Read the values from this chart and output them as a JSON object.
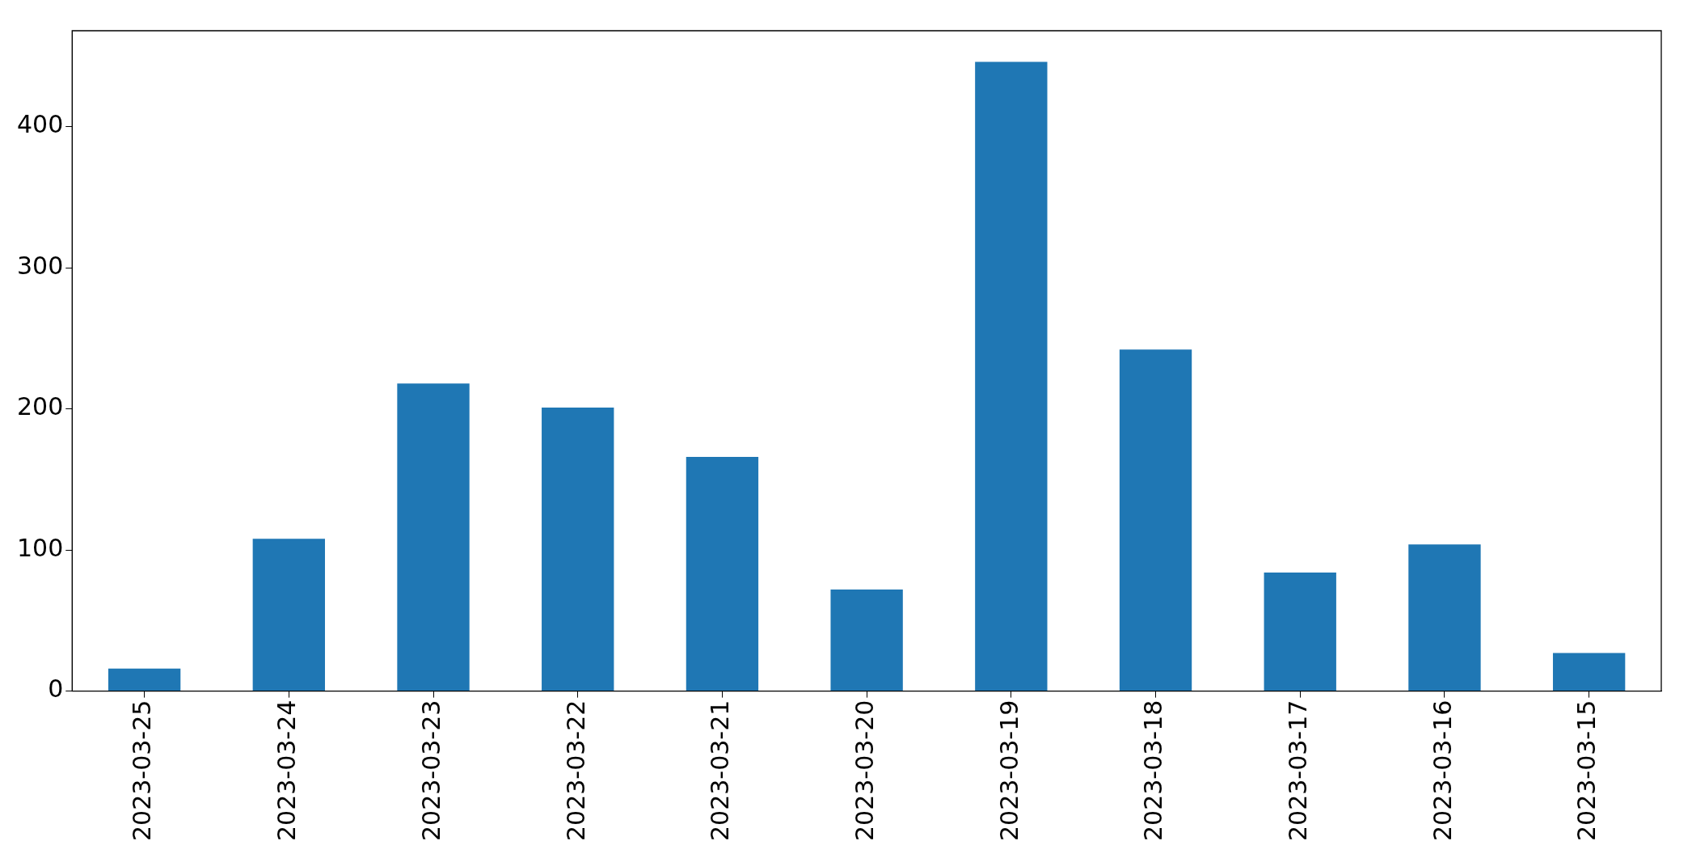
{
  "chart_data": {
    "type": "bar",
    "categories": [
      "2023-03-25",
      "2023-03-24",
      "2023-03-23",
      "2023-03-22",
      "2023-03-21",
      "2023-03-20",
      "2023-03-19",
      "2023-03-18",
      "2023-03-17",
      "2023-03-16",
      "2023-03-15"
    ],
    "values": [
      16,
      108,
      218,
      201,
      166,
      72,
      446,
      242,
      84,
      104,
      27
    ],
    "color": "#1f77b4",
    "ylim": [
      0,
      468
    ],
    "yticks": [
      0,
      100,
      200,
      300,
      400
    ],
    "grid": false,
    "legend": false
  }
}
